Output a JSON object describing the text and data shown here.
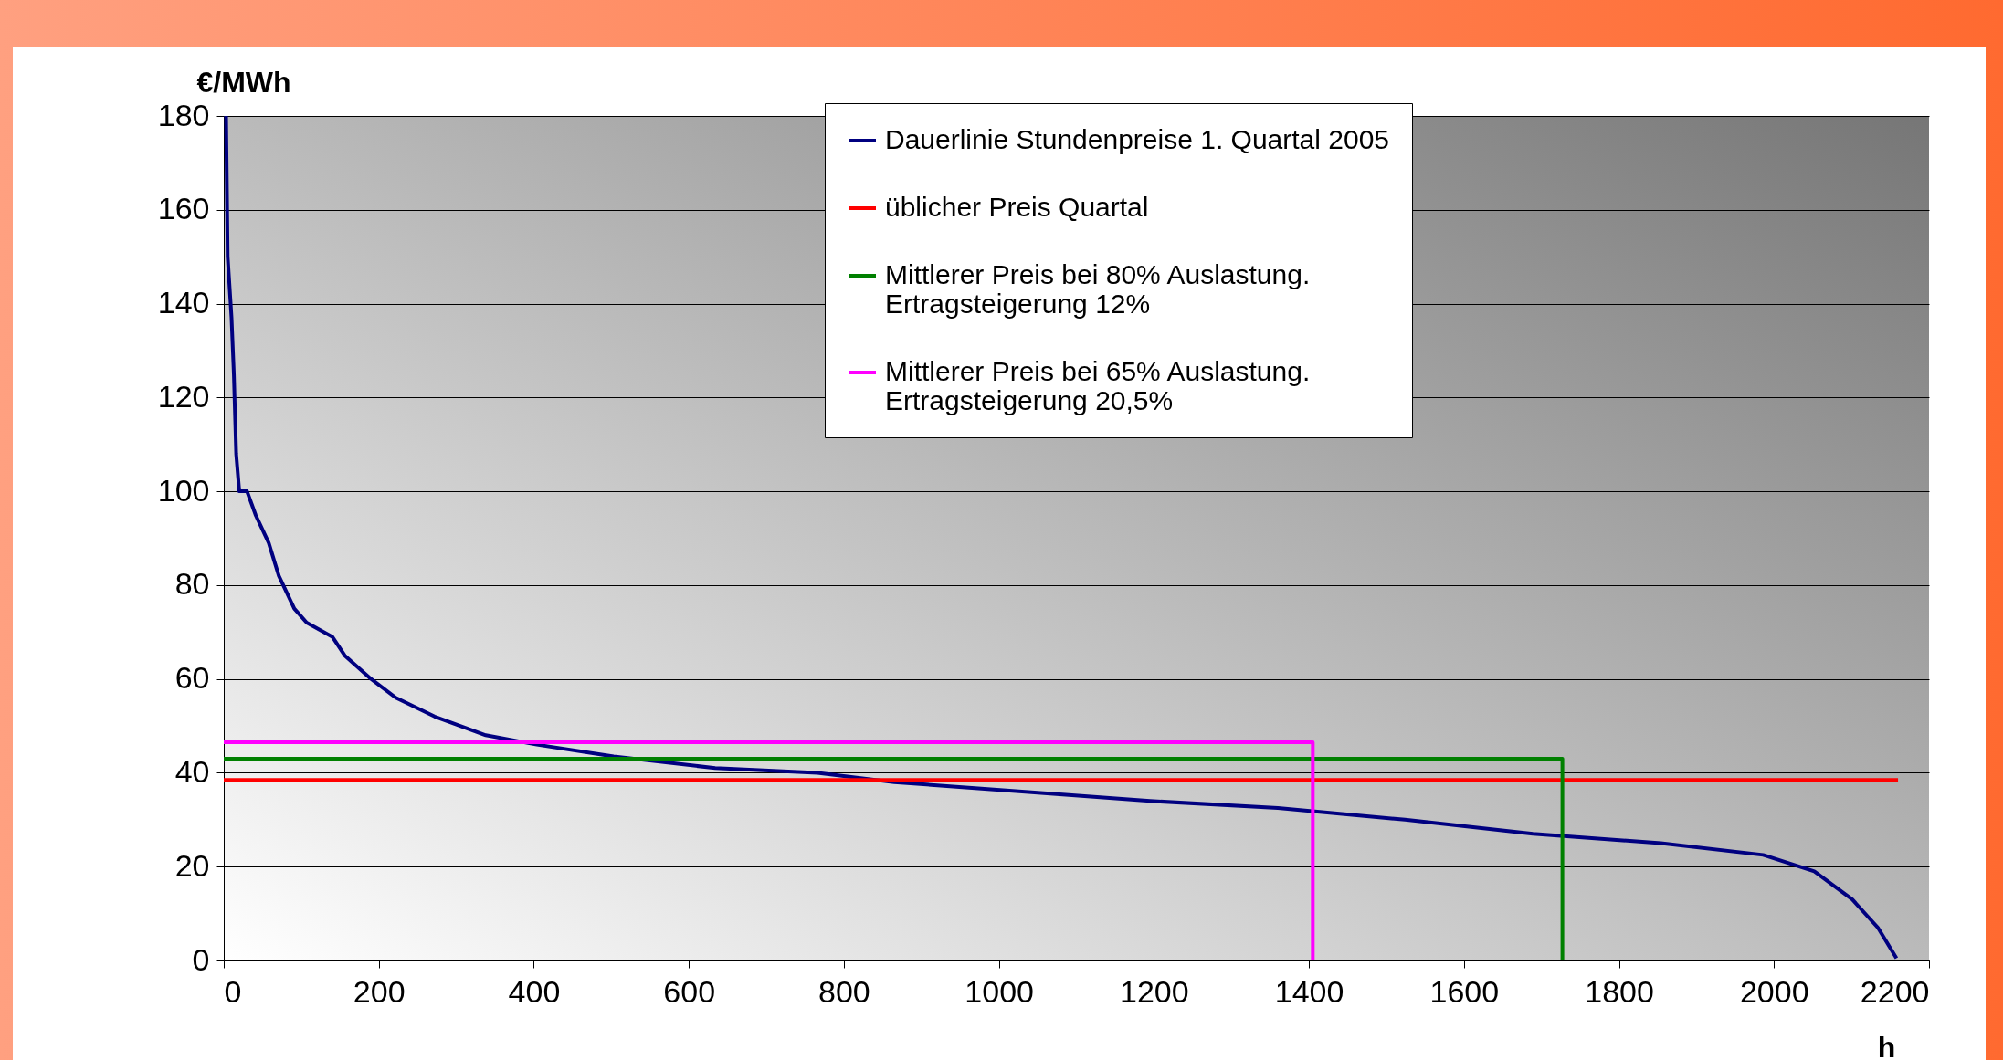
{
  "chart_data": {
    "type": "line",
    "xlabel": "h",
    "ylabel": "€/MWh",
    "xlim": [
      0,
      2200
    ],
    "xticks": [
      0,
      200,
      400,
      600,
      800,
      1000,
      1200,
      1400,
      1600,
      1800,
      2000,
      2200
    ],
    "ylim": [
      0,
      180
    ],
    "yticks": [
      0,
      20,
      40,
      60,
      80,
      100,
      120,
      140,
      160,
      180
    ],
    "grid": "y",
    "legend": "top right",
    "series": [
      {
        "name": "Dauerlinie Stundenpreise 1. Quartal 2005",
        "color": "#000080",
        "x": [
          3,
          5,
          10,
          13,
          16,
          20,
          30,
          41,
          58,
          71,
          91,
          107,
          140,
          156,
          190,
          222,
          272,
          338,
          404,
          503,
          634,
          766,
          865,
          1030,
          1195,
          1360,
          1524,
          1689,
          1854,
          1986,
          2052,
          2101,
          2134,
          2158
        ],
        "values": [
          180,
          150,
          137,
          125,
          108,
          100,
          100,
          95,
          89,
          82,
          75,
          72,
          69,
          65,
          60,
          56,
          52,
          48,
          46,
          43.5,
          41,
          40,
          38,
          36,
          34,
          32.5,
          30,
          27,
          25,
          22.5,
          19,
          13,
          7,
          0.5
        ]
      },
      {
        "name": "üblicher Preis Quartal",
        "color": "#ff0000",
        "x": [
          0,
          2160
        ],
        "values": [
          38.5,
          38.5
        ]
      },
      {
        "name": "Mittlerer Preis bei 80% Auslastung. Ertragsteigerung 12%",
        "color": "#008000",
        "x": [
          0,
          1727,
          1727
        ],
        "values": [
          43,
          43,
          0
        ]
      },
      {
        "name": "Mittlerer Preis bei 65% Auslastung. Ertragsteigerung 20,5%",
        "color": "#ff00ff",
        "x": [
          0,
          1405,
          1405
        ],
        "values": [
          46.5,
          46.5,
          0
        ]
      }
    ]
  }
}
